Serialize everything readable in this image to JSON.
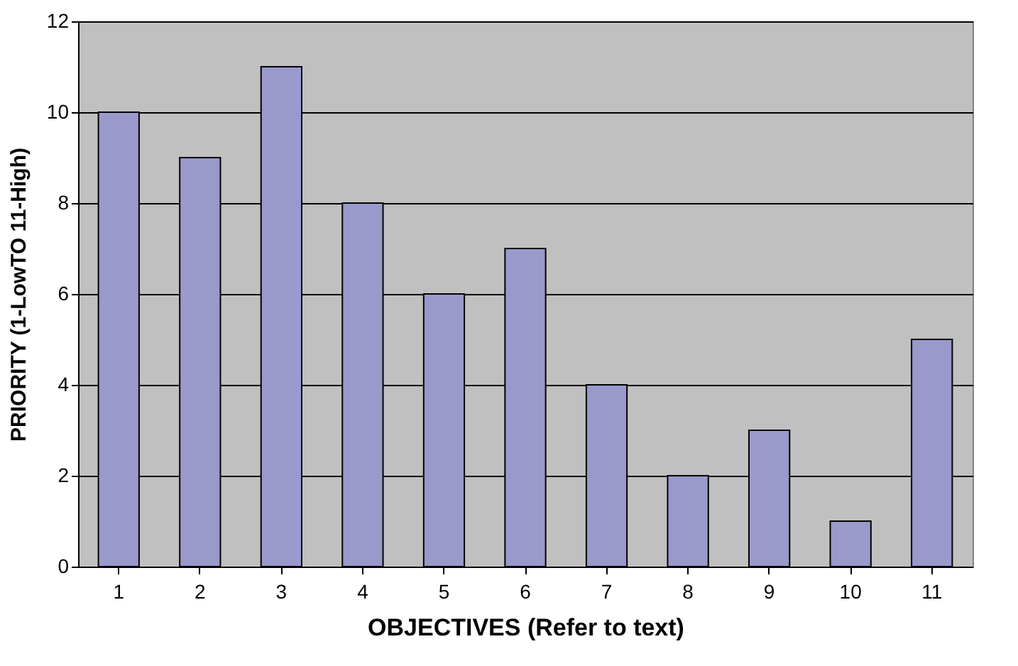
{
  "chart_data": {
    "type": "bar",
    "xlabel": "OBJECTIVES (Refer to text)",
    "ylabel": "PRIORITY (1-LowTO 11-High)",
    "categories": [
      "1",
      "2",
      "3",
      "4",
      "5",
      "6",
      "7",
      "8",
      "9",
      "10",
      "11"
    ],
    "values": [
      10,
      9,
      11,
      8,
      6,
      7,
      4,
      2,
      3,
      1,
      5
    ],
    "color": "#9999cc",
    "ylim": [
      0,
      12
    ],
    "yticks": [
      0,
      2,
      4,
      6,
      8,
      10,
      12
    ],
    "grid": "y"
  }
}
